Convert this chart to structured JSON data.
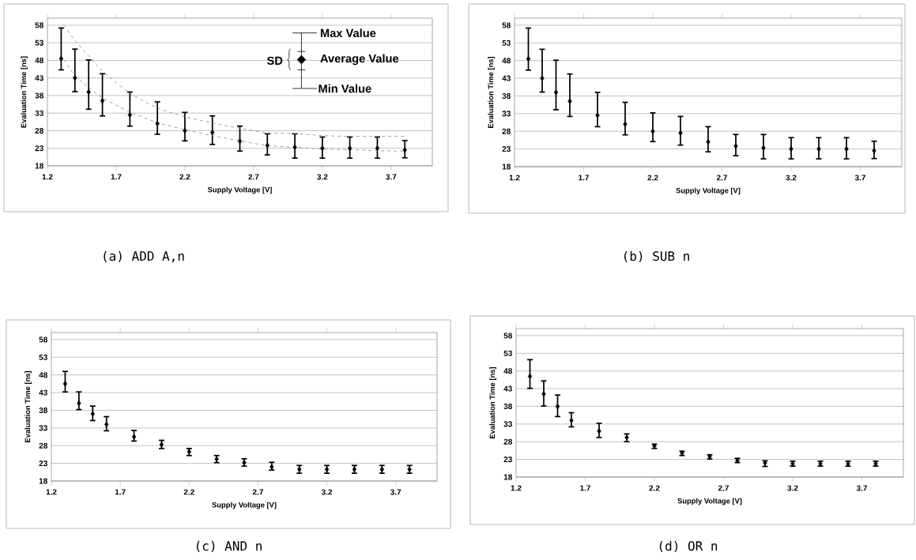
{
  "chart_data": [
    {
      "type": "scatter",
      "title": "(a)  ADD A,n",
      "xlabel": "Supply Voltage [V]",
      "ylabel": "Evaluation Time [ns]",
      "x": [
        1.3,
        1.4,
        1.5,
        1.6,
        1.8,
        2.0,
        2.2,
        2.4,
        2.6,
        2.8,
        3.0,
        3.2,
        3.4,
        3.6,
        3.8
      ],
      "xlim": [
        1.2,
        4.0
      ],
      "ylim": [
        18,
        60
      ],
      "xticks": [
        1.2,
        1.7,
        2.2,
        2.7,
        3.2,
        3.7
      ],
      "yticks": [
        18,
        23,
        28,
        33,
        38,
        43,
        48,
        53,
        58
      ],
      "grid": "y",
      "marker": "diamond",
      "annotations": [
        "Max Value",
        "SD",
        "Average Value",
        "Min Value"
      ],
      "series": [
        {
          "color": "#000000",
          "values": [
            48.5,
            43,
            39,
            36.5,
            32.5,
            30,
            28,
            27.5,
            25,
            23.8,
            23.3,
            23,
            23,
            23,
            22.5
          ],
          "errors": [
            [
              45.3,
              57.2
            ],
            [
              39.1,
              51.2
            ],
            [
              34.1,
              48.1
            ],
            [
              32.2,
              44.2
            ],
            [
              29.3,
              39
            ],
            [
              27,
              36.2
            ],
            [
              25.1,
              33.2
            ],
            [
              24.1,
              32.2
            ],
            [
              22.2,
              29.3
            ],
            [
              21.1,
              27.1
            ],
            [
              20.2,
              27.1
            ],
            [
              20.2,
              26.2
            ],
            [
              20.2,
              26.2
            ],
            [
              20.2,
              26.2
            ],
            [
              20.3,
              25.2
            ]
          ]
        },
        {
          "type": "line",
          "line_style": "dashed",
          "marker": "none",
          "color": "#999999",
          "x": [
            1.32,
            1.4,
            1.5,
            1.6,
            1.8,
            2.0,
            2.2,
            2.4,
            2.6,
            2.8,
            3.0,
            3.2,
            3.4,
            3.6,
            3.8
          ],
          "values": [
            58,
            53.7,
            49.3,
            45,
            38.7,
            34.5,
            32,
            30.2,
            28.7,
            27.4,
            27.2,
            26.6,
            26.4,
            26.4,
            26.4
          ]
        },
        {
          "type": "line",
          "line_style": "dashed",
          "marker": "none",
          "color": "#999999",
          "x": [
            1.32,
            1.4,
            1.5,
            1.6,
            1.8,
            2.0,
            2.2,
            2.4,
            2.6,
            2.8,
            3.0,
            3.2,
            3.4,
            3.6,
            3.8
          ],
          "values": [
            48.2,
            43.7,
            40.3,
            37.4,
            33.3,
            30.3,
            28.3,
            26.6,
            25.1,
            23.8,
            23.3,
            22.8,
            22.6,
            22.3,
            22.2
          ]
        }
      ]
    },
    {
      "type": "scatter",
      "title": "(b)  SUB n",
      "xlabel": "Supply Voltage [V]",
      "ylabel": "Evaluation Time [ns]",
      "x": [
        1.3,
        1.4,
        1.5,
        1.6,
        1.8,
        2.0,
        2.2,
        2.4,
        2.6,
        2.8,
        3.0,
        3.2,
        3.4,
        3.6,
        3.8
      ],
      "xlim": [
        1.2,
        4.0
      ],
      "ylim": [
        18,
        60
      ],
      "xticks": [
        1.2,
        1.7,
        2.2,
        2.7,
        3.2,
        3.7
      ],
      "yticks": [
        18,
        23,
        28,
        33,
        38,
        43,
        48,
        53,
        58
      ],
      "grid": "y",
      "marker": "diamond",
      "series": [
        {
          "color": "#000000",
          "values": [
            48.5,
            43,
            39,
            36.5,
            32.5,
            30,
            28,
            27.5,
            25,
            23.8,
            23.3,
            23,
            23,
            23,
            22.5
          ],
          "errors": [
            [
              45.3,
              57.2
            ],
            [
              39.1,
              51.2
            ],
            [
              34.1,
              48.1
            ],
            [
              32.2,
              44.2
            ],
            [
              29.3,
              39
            ],
            [
              27,
              36.2
            ],
            [
              25.1,
              33.2
            ],
            [
              24.1,
              32.2
            ],
            [
              22.2,
              29.3
            ],
            [
              21.1,
              27.1
            ],
            [
              20.2,
              27.1
            ],
            [
              20.2,
              26.2
            ],
            [
              20.2,
              26.2
            ],
            [
              20.2,
              26.2
            ],
            [
              20.3,
              25.2
            ]
          ]
        }
      ]
    },
    {
      "type": "scatter",
      "title": "(c)  AND n",
      "xlabel": "Supply Voltage [V]",
      "ylabel": "Evaluation Time [ns]",
      "x": [
        1.3,
        1.4,
        1.5,
        1.6,
        1.8,
        2.0,
        2.2,
        2.4,
        2.6,
        2.8,
        3.0,
        3.2,
        3.4,
        3.6,
        3.8
      ],
      "xlim": [
        1.2,
        4.0
      ],
      "ylim": [
        18,
        60
      ],
      "xticks": [
        1.2,
        1.7,
        2.2,
        2.7,
        3.2,
        3.7
      ],
      "yticks": [
        18,
        23,
        28,
        33,
        38,
        43,
        48,
        53,
        58
      ],
      "grid": "y",
      "marker": "diamond",
      "series": [
        {
          "color": "#000000",
          "values": [
            45.5,
            40,
            37,
            34,
            30.5,
            28.3,
            26.3,
            24.2,
            23.2,
            22,
            21.3,
            21.3,
            21.3,
            21.3,
            21.3
          ],
          "errors": [
            [
              43.2,
              49
            ],
            [
              38.2,
              43.2
            ],
            [
              35.1,
              39.2
            ],
            [
              32.2,
              36.2
            ],
            [
              29.3,
              32.3
            ],
            [
              27.2,
              29.5
            ],
            [
              25.2,
              27.2
            ],
            [
              23.2,
              25.2
            ],
            [
              22.2,
              24.3
            ],
            [
              21.1,
              23.3
            ],
            [
              20.2,
              22.4
            ],
            [
              20.2,
              22.4
            ],
            [
              20.2,
              22.4
            ],
            [
              20.2,
              22.4
            ],
            [
              20.2,
              22.4
            ]
          ]
        }
      ]
    },
    {
      "type": "scatter",
      "title": "(d)  OR n",
      "xlabel": "Supply Voltage [V]",
      "ylabel": "Evaluation Time [ns]",
      "x": [
        1.3,
        1.4,
        1.5,
        1.6,
        1.8,
        2.0,
        2.2,
        2.4,
        2.6,
        2.8,
        3.0,
        3.2,
        3.4,
        3.6,
        3.8
      ],
      "xlim": [
        1.2,
        4.0
      ],
      "ylim": [
        18,
        60
      ],
      "xticks": [
        1.2,
        1.7,
        2.2,
        2.7,
        3.2,
        3.7
      ],
      "yticks": [
        18,
        23,
        28,
        33,
        38,
        43,
        48,
        53,
        58
      ],
      "grid": "y",
      "marker": "diamond",
      "series": [
        {
          "color": "#000000",
          "values": [
            46.5,
            41.5,
            38,
            34,
            31,
            29.2,
            26.8,
            24.8,
            23.8,
            22.7,
            22,
            21.8,
            21.8,
            21.8,
            21.8
          ],
          "errors": [
            [
              43.1,
              51.2
            ],
            [
              38.1,
              45.2
            ],
            [
              35.1,
              41.2
            ],
            [
              32.2,
              36.2
            ],
            [
              29.2,
              33.2
            ],
            [
              28,
              30.2
            ],
            [
              26.1,
              27.3
            ],
            [
              24.1,
              25.3
            ],
            [
              23.1,
              24.3
            ],
            [
              22.1,
              23.3
            ],
            [
              21,
              22.6
            ],
            [
              21.1,
              22.5
            ],
            [
              21.1,
              22.5
            ],
            [
              21.1,
              22.5
            ],
            [
              21.1,
              22.5
            ]
          ]
        }
      ]
    }
  ]
}
